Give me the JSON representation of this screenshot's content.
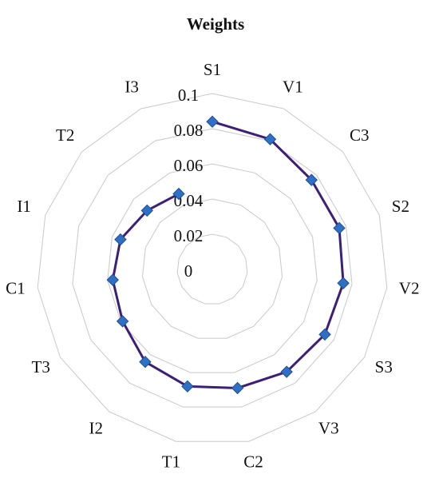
{
  "chart_data": {
    "type": "radar",
    "title": "Weights",
    "categories": [
      "S1",
      "V1",
      "C3",
      "S2",
      "V2",
      "S3",
      "V3",
      "C2",
      "T1",
      "I2",
      "T3",
      "C1",
      "I1",
      "T2",
      "I3"
    ],
    "values": [
      0.084,
      0.081,
      0.076,
      0.076,
      0.075,
      0.074,
      0.072,
      0.069,
      0.068,
      0.065,
      0.059,
      0.057,
      0.055,
      0.05,
      0.047
    ],
    "color": "#3b1f78",
    "marker_color": "#2f6fc4",
    "ylim": [
      0,
      0.1
    ],
    "yticks": [
      0,
      0.02,
      0.04,
      0.06,
      0.08,
      0.1
    ],
    "grid": true,
    "closed": false
  }
}
